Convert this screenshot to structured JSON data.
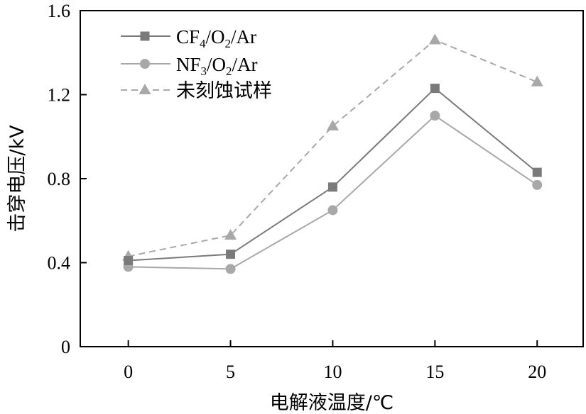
{
  "chart_data": {
    "type": "line",
    "title": "",
    "xlabel": "电解液温度/℃",
    "ylabel": "击穿电压/kV",
    "x": [
      0,
      5,
      10,
      15,
      20
    ],
    "xticks": [
      "0",
      "5",
      "10",
      "15",
      "20"
    ],
    "yticks": [
      "0",
      "0.4",
      "0.8",
      "1.2",
      "1.6"
    ],
    "xlim": [
      -2.35,
      22.25
    ],
    "ylim": [
      0,
      1.6
    ],
    "grid": false,
    "legend_position": "top-left",
    "series": [
      {
        "name": "CF4/O2/Ar",
        "name_parts": {
          "a": "CF",
          "sub1": "4",
          "b": "/O",
          "sub2": "2",
          "c": "/Ar"
        },
        "values": [
          0.41,
          0.44,
          0.76,
          1.23,
          0.83
        ],
        "marker": "square",
        "line_style": "solid",
        "color": "#7a7a7a"
      },
      {
        "name": "NF3/O2/Ar",
        "name_parts": {
          "a": "NF",
          "sub1": "3",
          "b": "/O",
          "sub2": "2",
          "c": "/Ar"
        },
        "values": [
          0.38,
          0.37,
          0.65,
          1.1,
          0.77
        ],
        "marker": "circle",
        "line_style": "solid",
        "color": "#a8a8a8"
      },
      {
        "name": "未刻蚀试样",
        "values": [
          0.43,
          0.53,
          1.05,
          1.46,
          1.26
        ],
        "marker": "triangle",
        "line_style": "dashed",
        "color": "#a8a8a8"
      }
    ]
  }
}
